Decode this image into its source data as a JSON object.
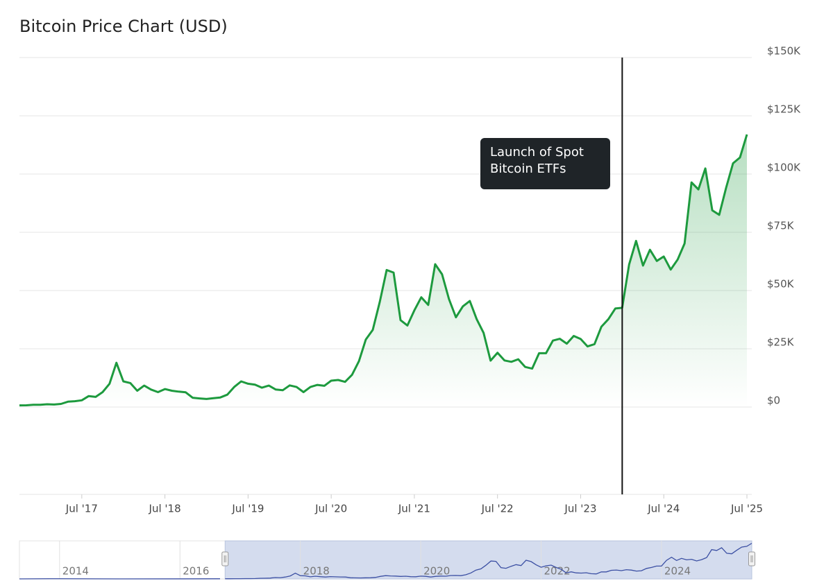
{
  "chart_data": {
    "type": "line",
    "title": "Bitcoin Price Chart (USD)",
    "color": "#1d9a3e",
    "area": true,
    "grid": true,
    "x": [
      "2016-10",
      "2016-11",
      "2016-12",
      "2017-01",
      "2017-02",
      "2017-03",
      "2017-04",
      "2017-05",
      "2017-06",
      "2017-07",
      "2017-08",
      "2017-09",
      "2017-10",
      "2017-11",
      "2017-12",
      "2018-01",
      "2018-02",
      "2018-03",
      "2018-04",
      "2018-05",
      "2018-06",
      "2018-07",
      "2018-08",
      "2018-09",
      "2018-10",
      "2018-11",
      "2018-12",
      "2019-01",
      "2019-02",
      "2019-03",
      "2019-04",
      "2019-05",
      "2019-06",
      "2019-07",
      "2019-08",
      "2019-09",
      "2019-10",
      "2019-11",
      "2019-12",
      "2020-01",
      "2020-02",
      "2020-03",
      "2020-04",
      "2020-05",
      "2020-06",
      "2020-07",
      "2020-08",
      "2020-09",
      "2020-10",
      "2020-11",
      "2020-12",
      "2021-01",
      "2021-02",
      "2021-03",
      "2021-04",
      "2021-05",
      "2021-06",
      "2021-07",
      "2021-08",
      "2021-09",
      "2021-10",
      "2021-11",
      "2021-12",
      "2022-01",
      "2022-02",
      "2022-03",
      "2022-04",
      "2022-05",
      "2022-06",
      "2022-07",
      "2022-08",
      "2022-09",
      "2022-10",
      "2022-11",
      "2022-12",
      "2023-01",
      "2023-02",
      "2023-03",
      "2023-04",
      "2023-05",
      "2023-06",
      "2023-07",
      "2023-08",
      "2023-09",
      "2023-10",
      "2023-11",
      "2023-12",
      "2024-01",
      "2024-02",
      "2024-03",
      "2024-04",
      "2024-05",
      "2024-06",
      "2024-07",
      "2024-08",
      "2024-09",
      "2024-10",
      "2024-11",
      "2024-12",
      "2025-01",
      "2025-02",
      "2025-03",
      "2025-04",
      "2025-05",
      "2025-06",
      "2025-07"
    ],
    "values": [
      700,
      740,
      960,
      970,
      1190,
      1080,
      1350,
      2300,
      2500,
      2880,
      4700,
      4340,
      6400,
      10000,
      19000,
      11000,
      10300,
      7000,
      9200,
      7500,
      6400,
      7700,
      7000,
      6600,
      6300,
      4000,
      3700,
      3450,
      3800,
      4100,
      5300,
      8600,
      11000,
      10000,
      9600,
      8300,
      9200,
      7500,
      7200,
      9300,
      8600,
      6400,
      8600,
      9500,
      9100,
      11300,
      11600,
      10800,
      13800,
      19700,
      29000,
      33100,
      45000,
      58800,
      57700,
      37300,
      35000,
      41500,
      47100,
      43800,
      61300,
      57000,
      46300,
      38500,
      43200,
      45500,
      37700,
      31800,
      19900,
      23300,
      20000,
      19400,
      20500,
      17200,
      16500,
      23100,
      23100,
      28500,
      29300,
      27200,
      30500,
      29200,
      26000,
      27000,
      34500,
      37700,
      42300,
      42600,
      61200,
      71300,
      60700,
      67500,
      62700,
      64600,
      59000,
      63300,
      70200,
      96400,
      93400,
      102400,
      84400,
      82500,
      94200,
      104600,
      107100,
      117000
    ],
    "xlim": [
      "2016-10",
      "2025-07"
    ],
    "xticks": [
      {
        "value": "2017-07",
        "label": "Jul '17"
      },
      {
        "value": "2018-07",
        "label": "Jul '18"
      },
      {
        "value": "2019-07",
        "label": "Jul '19"
      },
      {
        "value": "2020-07",
        "label": "Jul '20"
      },
      {
        "value": "2021-07",
        "label": "Jul '21"
      },
      {
        "value": "2022-07",
        "label": "Jul '22"
      },
      {
        "value": "2023-07",
        "label": "Jul '23"
      },
      {
        "value": "2024-07",
        "label": "Jul '24"
      },
      {
        "value": "2025-07",
        "label": "Jul '25"
      }
    ],
    "ylim": [
      -37500,
      150000
    ],
    "yticks": [
      {
        "value": 0,
        "label": "$0"
      },
      {
        "value": 25000,
        "label": "$25K"
      },
      {
        "value": 50000,
        "label": "$50K"
      },
      {
        "value": 75000,
        "label": "$75K"
      },
      {
        "value": 100000,
        "label": "$100K"
      },
      {
        "value": 125000,
        "label": "$125K"
      },
      {
        "value": 150000,
        "label": "$150K"
      }
    ],
    "annotation": {
      "x": "2024-01",
      "text_lines": [
        "Launch of Spot",
        "Bitcoin ETFs"
      ]
    },
    "navigator": {
      "x": [
        "2013-05",
        "2013-11",
        "2014-01",
        "2015-01",
        "2016-01",
        "2016-09"
      ],
      "values": [
        120,
        1000,
        800,
        300,
        430,
        610
      ],
      "xlim": [
        "2013-05",
        "2025-07"
      ],
      "ylim": [
        0,
        125000
      ],
      "color": "#3b4fa3",
      "xticks": [
        {
          "value": "2014-01",
          "label": "2014"
        },
        {
          "value": "2016-01",
          "label": "2016"
        },
        {
          "value": "2018-01",
          "label": "2018"
        },
        {
          "value": "2020-01",
          "label": "2020"
        },
        {
          "value": "2022-01",
          "label": "2022"
        },
        {
          "value": "2024-01",
          "label": "2024"
        }
      ]
    }
  }
}
